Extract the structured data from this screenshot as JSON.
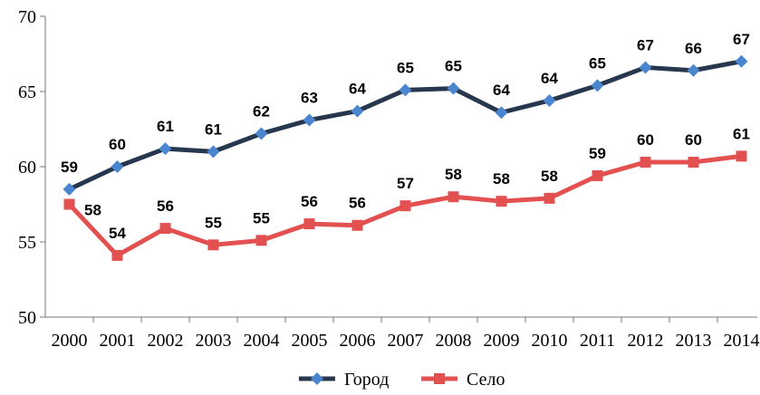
{
  "chart_data": {
    "type": "line",
    "categories": [
      "2000",
      "2001",
      "2002",
      "2003",
      "2004",
      "2005",
      "2006",
      "2007",
      "2008",
      "2009",
      "2010",
      "2011",
      "2012",
      "2013",
      "2014"
    ],
    "series": [
      {
        "name": "Город",
        "color": "#27374d",
        "marker_color": "#4a86cf",
        "marker": "diamond",
        "values": [
          58.5,
          60.0,
          61.2,
          61.0,
          62.2,
          63.1,
          63.7,
          65.1,
          65.2,
          63.6,
          64.4,
          65.4,
          66.6,
          66.4,
          67.0
        ],
        "value_labels": [
          "59",
          "60",
          "61",
          "61",
          "62",
          "63",
          "64",
          "65",
          "65",
          "64",
          "64",
          "65",
          "67",
          "66",
          "67"
        ]
      },
      {
        "name": "Село",
        "color": "#e2504f",
        "marker_color": "#e2504f",
        "marker": "square",
        "values": [
          57.5,
          54.1,
          55.9,
          54.8,
          55.1,
          56.2,
          56.1,
          57.4,
          58.0,
          57.7,
          57.9,
          59.4,
          60.3,
          60.3,
          60.7
        ],
        "value_labels": [
          "58",
          "54",
          "56",
          "55",
          "55",
          "56",
          "56",
          "57",
          "58",
          "58",
          "58",
          "59",
          "60",
          "60",
          "61"
        ]
      }
    ],
    "ylim": [
      50,
      70
    ],
    "yticks": [
      50,
      55,
      60,
      65,
      70
    ],
    "grid": false
  }
}
